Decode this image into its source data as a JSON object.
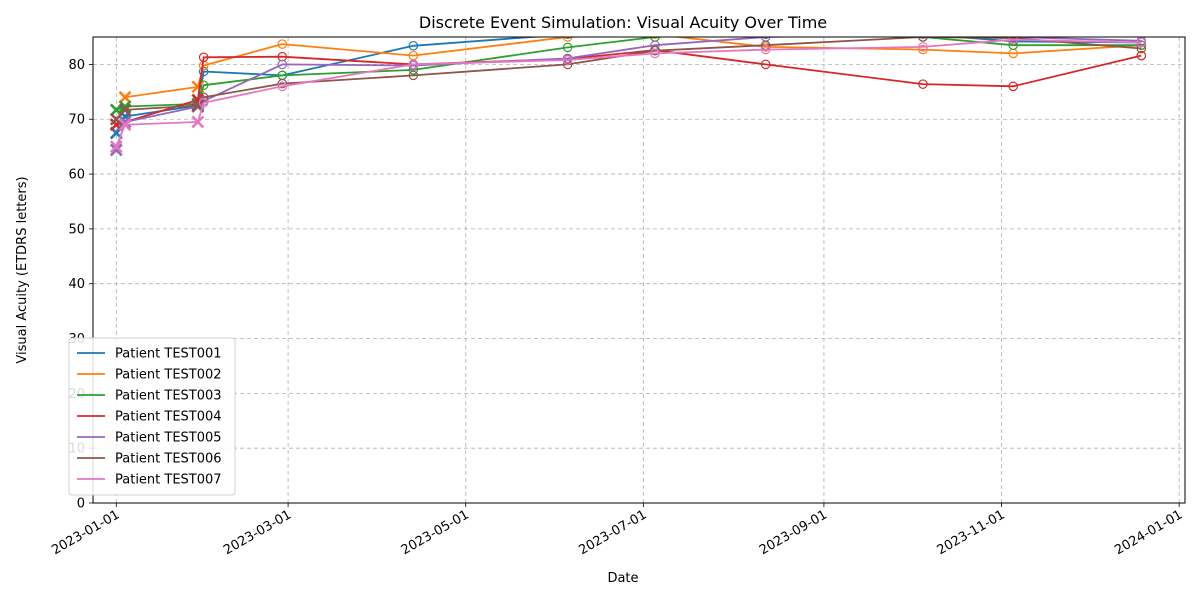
{
  "chart_data": {
    "type": "line",
    "title": "Discrete Event Simulation: Visual Acuity Over Time",
    "xlabel": "Date",
    "ylabel": "Visual Acuity (ETDRS letters)",
    "xlim": [
      "2022-12-24",
      "2024-01-03"
    ],
    "ylim": [
      0,
      85
    ],
    "x_ticks": [
      "2023-01-01",
      "2023-03-01",
      "2023-05-01",
      "2023-07-01",
      "2023-09-01",
      "2023-11-01",
      "2024-01-01"
    ],
    "y_ticks": [
      0,
      10,
      20,
      30,
      40,
      50,
      60,
      70,
      80
    ],
    "grid": true,
    "legend_position": "lower-left",
    "marker_styles": {
      "filled": "x",
      "hollow": "open circle"
    },
    "series": [
      {
        "name": "Patient TEST001",
        "color": "#1f77b4",
        "points": [
          {
            "x": "2023-01-01",
            "y": 67.5,
            "m": "x"
          },
          {
            "x": "2023-01-04",
            "y": 70.5,
            "m": "x"
          },
          {
            "x": "2023-01-29",
            "y": 72.5,
            "m": "x"
          },
          {
            "x": "2023-01-31",
            "y": 78.7,
            "m": "o"
          },
          {
            "x": "2023-02-27",
            "y": 78.0,
            "m": "o"
          },
          {
            "x": "2023-04-13",
            "y": 83.4,
            "m": "o"
          },
          {
            "x": "2023-06-05",
            "y": 85.5,
            "m": "o"
          },
          {
            "x": "2023-07-05",
            "y": 86.0,
            "m": "o"
          },
          {
            "x": "2023-08-12",
            "y": 85.5,
            "m": "o"
          },
          {
            "x": "2023-10-05",
            "y": 85.5,
            "m": "o"
          },
          {
            "x": "2023-11-05",
            "y": 84.2,
            "m": "o"
          },
          {
            "x": "2023-12-19",
            "y": 84.0,
            "m": "o"
          }
        ]
      },
      {
        "name": "Patient TEST002",
        "color": "#ff7f0e",
        "points": [
          {
            "x": "2023-01-04",
            "y": 74.0,
            "m": "x"
          },
          {
            "x": "2023-01-29",
            "y": 75.9,
            "m": "x"
          },
          {
            "x": "2023-01-31",
            "y": 79.8,
            "m": "o"
          },
          {
            "x": "2023-02-27",
            "y": 83.7,
            "m": "o"
          },
          {
            "x": "2023-04-13",
            "y": 81.6,
            "m": "o"
          },
          {
            "x": "2023-06-05",
            "y": 85.0,
            "m": "o"
          },
          {
            "x": "2023-07-05",
            "y": 85.5,
            "m": "o"
          },
          {
            "x": "2023-08-12",
            "y": 83.2,
            "m": "o"
          },
          {
            "x": "2023-10-05",
            "y": 82.7,
            "m": "o"
          },
          {
            "x": "2023-11-05",
            "y": 82.0,
            "m": "o"
          },
          {
            "x": "2023-12-19",
            "y": 83.5,
            "m": "o"
          }
        ]
      },
      {
        "name": "Patient TEST003",
        "color": "#2ca02c",
        "points": [
          {
            "x": "2023-01-01",
            "y": 71.7,
            "m": "x"
          },
          {
            "x": "2023-01-04",
            "y": 72.3,
            "m": "x"
          },
          {
            "x": "2023-01-29",
            "y": 72.8,
            "m": "x"
          },
          {
            "x": "2023-01-31",
            "y": 76.2,
            "m": "o"
          },
          {
            "x": "2023-02-27",
            "y": 78.0,
            "m": "o"
          },
          {
            "x": "2023-04-13",
            "y": 79.0,
            "m": "o"
          },
          {
            "x": "2023-06-05",
            "y": 83.1,
            "m": "o"
          },
          {
            "x": "2023-07-05",
            "y": 85.0,
            "m": "o"
          },
          {
            "x": "2023-08-12",
            "y": 86.0,
            "m": "o"
          },
          {
            "x": "2023-10-05",
            "y": 85.0,
            "m": "o"
          },
          {
            "x": "2023-11-05",
            "y": 83.5,
            "m": "o"
          },
          {
            "x": "2023-12-19",
            "y": 83.5,
            "m": "o"
          }
        ]
      },
      {
        "name": "Patient TEST004",
        "color": "#d62728",
        "points": [
          {
            "x": "2023-01-01",
            "y": 69.0,
            "m": "x"
          },
          {
            "x": "2023-01-29",
            "y": 73.5,
            "m": "x"
          },
          {
            "x": "2023-01-31",
            "y": 81.3,
            "m": "o"
          },
          {
            "x": "2023-02-27",
            "y": 81.4,
            "m": "o"
          },
          {
            "x": "2023-04-13",
            "y": 80.0,
            "m": "o"
          },
          {
            "x": "2023-06-05",
            "y": 81.0,
            "m": "o"
          },
          {
            "x": "2023-07-05",
            "y": 82.6,
            "m": "o"
          },
          {
            "x": "2023-08-12",
            "y": 80.0,
            "m": "o"
          },
          {
            "x": "2023-10-05",
            "y": 76.4,
            "m": "o"
          },
          {
            "x": "2023-11-05",
            "y": 76.0,
            "m": "o"
          },
          {
            "x": "2023-12-19",
            "y": 81.6,
            "m": "o"
          }
        ]
      },
      {
        "name": "Patient TEST005",
        "color": "#9467bd",
        "points": [
          {
            "x": "2023-01-01",
            "y": 64.4,
            "m": "x"
          },
          {
            "x": "2023-01-04",
            "y": 69.5,
            "m": "x"
          },
          {
            "x": "2023-01-29",
            "y": 72.3,
            "m": "x"
          },
          {
            "x": "2023-01-31",
            "y": 73.3,
            "m": "o"
          },
          {
            "x": "2023-02-27",
            "y": 80.0,
            "m": "o"
          },
          {
            "x": "2023-04-13",
            "y": 79.8,
            "m": "o"
          },
          {
            "x": "2023-06-05",
            "y": 81.1,
            "m": "o"
          },
          {
            "x": "2023-07-05",
            "y": 83.5,
            "m": "o"
          },
          {
            "x": "2023-08-12",
            "y": 85.0,
            "m": "o"
          },
          {
            "x": "2023-10-05",
            "y": 85.5,
            "m": "o"
          },
          {
            "x": "2023-11-05",
            "y": 85.0,
            "m": "o"
          },
          {
            "x": "2023-12-19",
            "y": 84.3,
            "m": "o"
          }
        ]
      },
      {
        "name": "Patient TEST006",
        "color": "#8c564b",
        "points": [
          {
            "x": "2023-01-01",
            "y": 70.0,
            "m": "x"
          },
          {
            "x": "2023-01-04",
            "y": 71.7,
            "m": "x"
          },
          {
            "x": "2023-01-29",
            "y": 72.5,
            "m": "x"
          },
          {
            "x": "2023-01-31",
            "y": 74.0,
            "m": "o"
          },
          {
            "x": "2023-02-27",
            "y": 76.5,
            "m": "o"
          },
          {
            "x": "2023-04-13",
            "y": 78.0,
            "m": "o"
          },
          {
            "x": "2023-06-05",
            "y": 80.0,
            "m": "o"
          },
          {
            "x": "2023-07-05",
            "y": 82.5,
            "m": "o"
          },
          {
            "x": "2023-08-12",
            "y": 83.5,
            "m": "o"
          },
          {
            "x": "2023-10-05",
            "y": 85.0,
            "m": "o"
          },
          {
            "x": "2023-11-05",
            "y": 84.8,
            "m": "o"
          },
          {
            "x": "2023-12-19",
            "y": 82.9,
            "m": "o"
          }
        ]
      },
      {
        "name": "Patient TEST007",
        "color": "#e377c2",
        "points": [
          {
            "x": "2023-01-01",
            "y": 65.0,
            "m": "x"
          },
          {
            "x": "2023-01-04",
            "y": 69.0,
            "m": "x"
          },
          {
            "x": "2023-01-29",
            "y": 69.5,
            "m": "x"
          },
          {
            "x": "2023-01-31",
            "y": 73.0,
            "m": "o"
          },
          {
            "x": "2023-02-27",
            "y": 76.0,
            "m": "o"
          },
          {
            "x": "2023-04-13",
            "y": 80.0,
            "m": "o"
          },
          {
            "x": "2023-06-05",
            "y": 80.8,
            "m": "o"
          },
          {
            "x": "2023-07-05",
            "y": 82.0,
            "m": "o"
          },
          {
            "x": "2023-08-12",
            "y": 82.7,
            "m": "o"
          },
          {
            "x": "2023-10-05",
            "y": 83.2,
            "m": "o"
          },
          {
            "x": "2023-11-05",
            "y": 84.5,
            "m": "o"
          },
          {
            "x": "2023-12-19",
            "y": 84.0,
            "m": "o"
          }
        ]
      }
    ]
  }
}
